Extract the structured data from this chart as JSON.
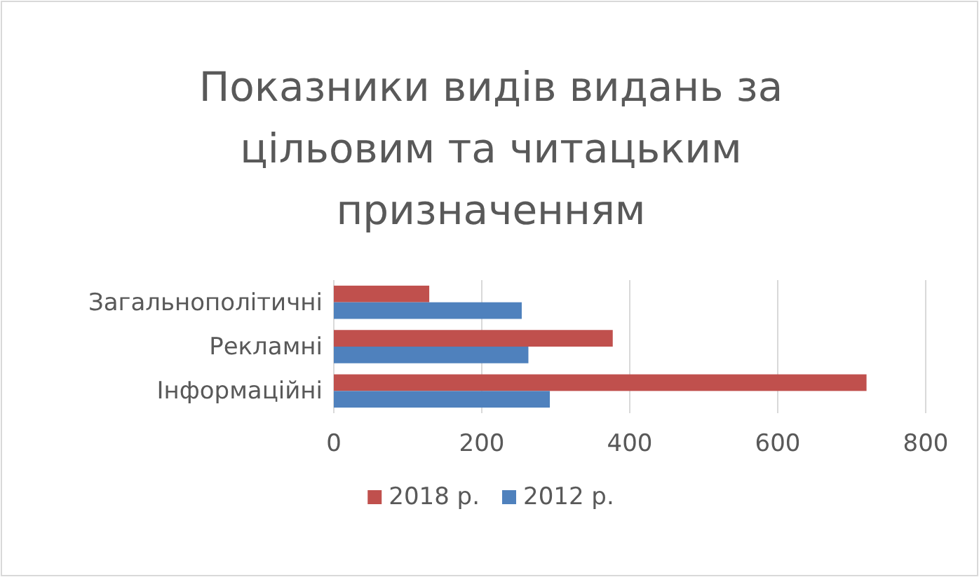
{
  "chart_data": {
    "type": "bar",
    "orientation": "horizontal",
    "title": "Показники видів видань за цільовим та читацьким призначенням",
    "categories": [
      "Загальнополітичні",
      "Рекламні",
      "Інформаційні"
    ],
    "series": [
      {
        "name": "2018 р.",
        "color": "#c0504d",
        "values": [
          129,
          377,
          720
        ]
      },
      {
        "name": "2012 р.",
        "color": "#4f81bd",
        "values": [
          254,
          263,
          292
        ]
      }
    ],
    "xlim": [
      0,
      800
    ],
    "xticks": [
      0,
      200,
      400,
      600,
      800
    ],
    "grid": "x",
    "legend": "bottom"
  }
}
